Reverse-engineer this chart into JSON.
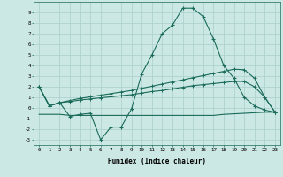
{
  "xlabel": "Humidex (Indice chaleur)",
  "x": [
    0,
    1,
    2,
    3,
    4,
    5,
    6,
    7,
    8,
    9,
    10,
    11,
    12,
    13,
    14,
    15,
    16,
    17,
    18,
    19,
    20,
    21,
    22,
    23
  ],
  "line1": [
    2.0,
    0.2,
    0.5,
    -0.8,
    -0.6,
    -0.5,
    -3.0,
    -1.8,
    -1.8,
    -0.1,
    3.2,
    5.0,
    7.0,
    7.8,
    9.4,
    9.4,
    8.6,
    6.5,
    4.0,
    2.8,
    1.0,
    0.2,
    -0.2,
    -0.4
  ],
  "line2": [
    2.0,
    0.2,
    0.5,
    0.7,
    0.9,
    1.05,
    1.2,
    1.35,
    1.5,
    1.65,
    1.85,
    2.05,
    2.25,
    2.45,
    2.65,
    2.85,
    3.05,
    3.25,
    3.45,
    3.65,
    3.6,
    2.8,
    1.0,
    -0.4
  ],
  "line3": [
    2.0,
    0.2,
    0.5,
    0.6,
    0.75,
    0.85,
    0.95,
    1.05,
    1.15,
    1.25,
    1.4,
    1.55,
    1.65,
    1.8,
    1.95,
    2.1,
    2.2,
    2.3,
    2.4,
    2.5,
    2.5,
    2.0,
    1.0,
    -0.4
  ],
  "line4": [
    -0.6,
    -0.6,
    -0.6,
    -0.7,
    -0.7,
    -0.7,
    -0.7,
    -0.7,
    -0.7,
    -0.7,
    -0.7,
    -0.7,
    -0.7,
    -0.7,
    -0.7,
    -0.7,
    -0.7,
    -0.7,
    -0.6,
    -0.55,
    -0.5,
    -0.45,
    -0.4,
    -0.4
  ],
  "line_color": "#1a6b5a",
  "bg_color": "#cce8e4",
  "grid_color": "#aacfcc",
  "ylim": [
    -3.5,
    10.0
  ],
  "xlim": [
    -0.5,
    23.5
  ],
  "yticks": [
    -3,
    -2,
    -1,
    0,
    1,
    2,
    3,
    4,
    5,
    6,
    7,
    8,
    9
  ]
}
